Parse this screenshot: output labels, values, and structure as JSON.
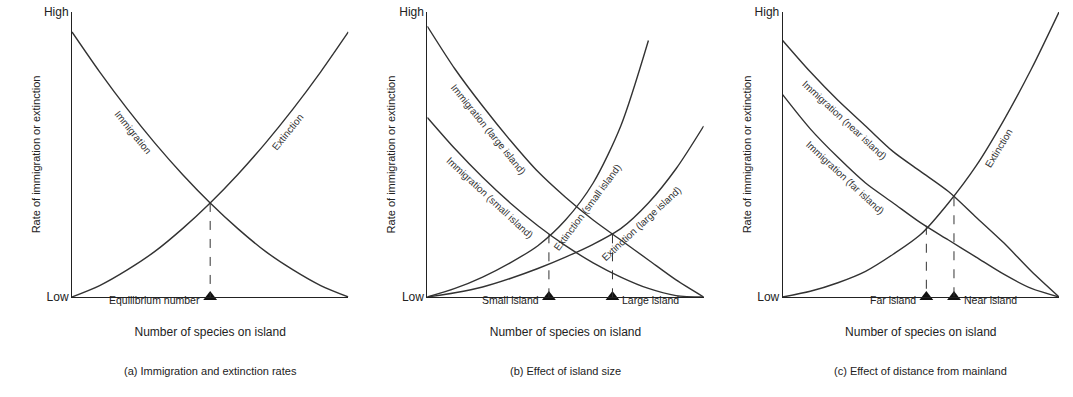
{
  "chart_data": [
    {
      "type": "line",
      "title": "(a) Immigration and extinction rates",
      "x_label": "Number of species on island",
      "y_label": "Rate of immigration or extinction",
      "x": [
        0,
        1,
        2,
        3,
        4,
        5,
        6,
        7,
        8,
        9,
        10
      ],
      "xlim": [
        0,
        10
      ],
      "ylim": [
        0,
        10
      ],
      "yticks": [
        {
          "value": 0,
          "label": "Low"
        },
        {
          "value": 10,
          "label": "High"
        }
      ],
      "tick_labels": "y",
      "grid": false,
      "color": "#333333",
      "series": [
        {
          "name": "Immigration",
          "values": [
            9.3,
            7.9,
            6.6,
            5.4,
            4.3,
            3.3,
            2.4,
            1.6,
            0.95,
            0.4,
            0
          ]
        },
        {
          "name": "Extinction",
          "values": [
            0,
            0.4,
            0.95,
            1.6,
            2.4,
            3.3,
            4.3,
            5.4,
            6.6,
            7.9,
            9.3
          ]
        }
      ],
      "equilibria": [
        {
          "label": "Equilibrium number",
          "x": 5,
          "y": 3.3
        }
      ]
    },
    {
      "type": "line",
      "title": "(b) Effect of island size",
      "x_label": "Number of species on island",
      "y_label": "Rate of immigration or extinction",
      "x": [
        0,
        1,
        2,
        3,
        4,
        5,
        6,
        7,
        8,
        9,
        10
      ],
      "xlim": [
        0,
        10
      ],
      "ylim": [
        0,
        10
      ],
      "yticks": [
        {
          "value": 0,
          "label": "Low"
        },
        {
          "value": 10,
          "label": "High"
        }
      ],
      "tick_labels": "y",
      "grid": false,
      "color": "#333333",
      "series": [
        {
          "name": "Immigration (large island)",
          "values": [
            9.5,
            8.0,
            6.7,
            5.5,
            4.4,
            3.5,
            2.7,
            2.0,
            1.3,
            0.6,
            0
          ]
        },
        {
          "name": "Immigration (small island)",
          "values": [
            6.3,
            5.2,
            4.2,
            3.3,
            2.5,
            1.8,
            1.2,
            0.7,
            0.3,
            0.05,
            0
          ]
        },
        {
          "name": "Extinction (small island)",
          "values": [
            0,
            0.3,
            0.7,
            1.2,
            1.8,
            2.7,
            4.0,
            6.0,
            9.0,
            null,
            null
          ]
        },
        {
          "name": "Extinction (large island)",
          "values": [
            0,
            0.15,
            0.35,
            0.65,
            1.0,
            1.4,
            1.85,
            2.4,
            3.3,
            4.5,
            6.0
          ]
        }
      ],
      "equilibria": [
        {
          "label": "Small island",
          "x": 4.4,
          "y": 2.2
        },
        {
          "label": "Large island",
          "x": 6.7,
          "y": 2.2
        }
      ]
    },
    {
      "type": "line",
      "title": "(c) Effect of distance from mainland",
      "x_label": "Number of species on island",
      "y_label": "Rate of immigration or extinction",
      "x": [
        0,
        1,
        2,
        3,
        4,
        5,
        6,
        7,
        8,
        9,
        10
      ],
      "xlim": [
        0,
        10
      ],
      "ylim": [
        0,
        10
      ],
      "yticks": [
        {
          "value": 0,
          "label": "Low"
        },
        {
          "value": 10,
          "label": "High"
        }
      ],
      "tick_labels": "y",
      "grid": false,
      "color": "#333333",
      "series": [
        {
          "name": "Immigration (near island)",
          "values": [
            9.0,
            7.9,
            6.9,
            6.0,
            5.1,
            4.4,
            3.7,
            2.8,
            1.9,
            0.9,
            0
          ]
        },
        {
          "name": "Immigration (far island)",
          "values": [
            7.1,
            5.9,
            4.9,
            4.0,
            3.3,
            2.6,
            2.0,
            1.4,
            0.8,
            0.3,
            0
          ]
        },
        {
          "name": "Extinction",
          "values": [
            0,
            0.2,
            0.5,
            0.9,
            1.5,
            2.2,
            3.3,
            4.6,
            6.2,
            8.0,
            10
          ]
        }
      ],
      "equilibria": [
        {
          "label": "Far island",
          "x": 5.2,
          "y": 2.5
        },
        {
          "label": "Near island",
          "x": 6.2,
          "y": 3.5
        }
      ]
    }
  ]
}
